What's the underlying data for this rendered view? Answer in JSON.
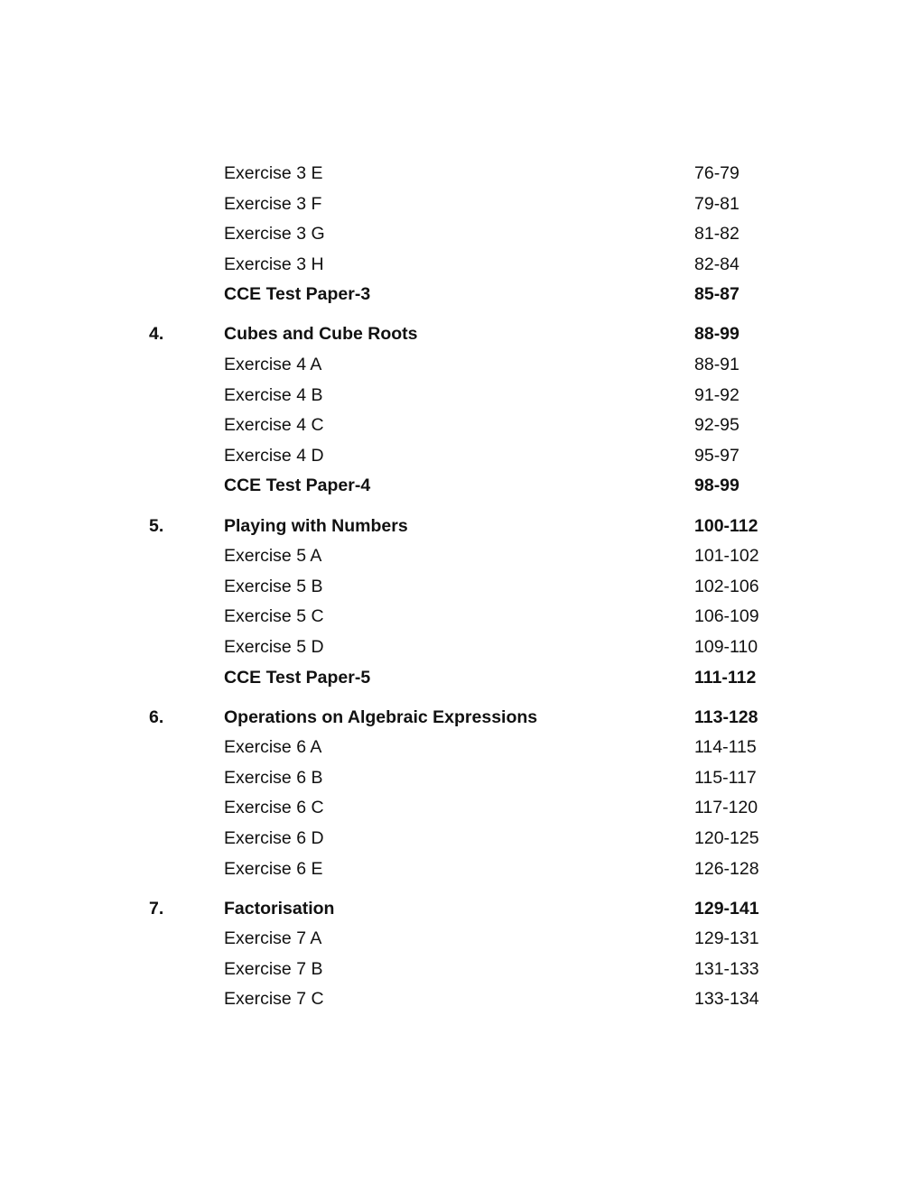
{
  "toc": [
    {
      "number": "",
      "title": "Exercise 3 E",
      "pages": "76-79",
      "kind": "exercise"
    },
    {
      "number": "",
      "title": "Exercise 3 F",
      "pages": "79-81",
      "kind": "exercise"
    },
    {
      "number": "",
      "title": "Exercise 3 G",
      "pages": "81-82",
      "kind": "exercise"
    },
    {
      "number": "",
      "title": "Exercise 3 H",
      "pages": "82-84",
      "kind": "exercise"
    },
    {
      "number": "",
      "title": "CCE Test Paper-3",
      "pages": "85-87",
      "kind": "test"
    },
    {
      "number": "4.",
      "title": "Cubes and Cube Roots",
      "pages": "88-99",
      "kind": "chapter"
    },
    {
      "number": "",
      "title": "Exercise 4 A",
      "pages": "88-91",
      "kind": "exercise"
    },
    {
      "number": "",
      "title": "Exercise 4 B",
      "pages": "91-92",
      "kind": "exercise"
    },
    {
      "number": "",
      "title": "Exercise 4 C",
      "pages": "92-95",
      "kind": "exercise"
    },
    {
      "number": "",
      "title": "Exercise 4 D",
      "pages": "95-97",
      "kind": "exercise"
    },
    {
      "number": "",
      "title": "CCE Test Paper-4",
      "pages": "98-99",
      "kind": "test"
    },
    {
      "number": "5.",
      "title": "Playing with Numbers",
      "pages": "100-112",
      "kind": "chapter"
    },
    {
      "number": "",
      "title": "Exercise 5 A",
      "pages": "101-102",
      "kind": "exercise"
    },
    {
      "number": "",
      "title": "Exercise 5 B",
      "pages": "102-106",
      "kind": "exercise"
    },
    {
      "number": "",
      "title": "Exercise 5 C",
      "pages": "106-109",
      "kind": "exercise"
    },
    {
      "number": "",
      "title": "Exercise 5 D",
      "pages": "109-110",
      "kind": "exercise"
    },
    {
      "number": "",
      "title": "CCE Test Paper-5",
      "pages": "111-112",
      "kind": "test"
    },
    {
      "number": "6.",
      "title": "Operations on Algebraic Expressions",
      "pages": "113-128",
      "kind": "chapter"
    },
    {
      "number": "",
      "title": "Exercise 6 A",
      "pages": "114-115",
      "kind": "exercise"
    },
    {
      "number": "",
      "title": "Exercise 6 B",
      "pages": "115-117",
      "kind": "exercise"
    },
    {
      "number": "",
      "title": "Exercise 6 C",
      "pages": "117-120",
      "kind": "exercise"
    },
    {
      "number": "",
      "title": "Exercise 6 D",
      "pages": "120-125",
      "kind": "exercise"
    },
    {
      "number": "",
      "title": "Exercise 6 E",
      "pages": "126-128",
      "kind": "exercise"
    },
    {
      "number": "7.",
      "title": "Factorisation",
      "pages": "129-141",
      "kind": "chapter"
    },
    {
      "number": "",
      "title": "Exercise 7 A",
      "pages": "129-131",
      "kind": "exercise"
    },
    {
      "number": "",
      "title": "Exercise 7 B",
      "pages": "131-133",
      "kind": "exercise"
    },
    {
      "number": "",
      "title": "Exercise 7 C",
      "pages": "133-134",
      "kind": "exercise"
    }
  ]
}
